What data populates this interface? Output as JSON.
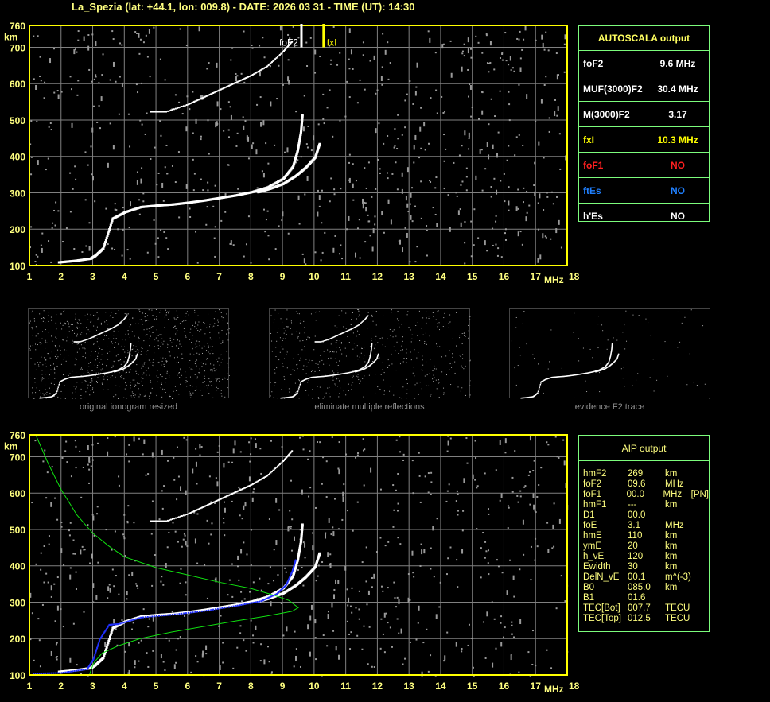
{
  "title": "La_Spezia (lat: +44.1, lon: 009.8) - DATE: 2026 03 31 - TIME (UT): 14:30",
  "chart_data": {
    "type": "scatter",
    "xlabel": "MHz",
    "ylabel": "km",
    "xlim": [
      1,
      18
    ],
    "ylim": [
      100,
      760
    ],
    "xticks": [
      "1",
      "2",
      "3",
      "4",
      "5",
      "6",
      "7",
      "8",
      "9",
      "10",
      "11",
      "12",
      "13",
      "14",
      "15",
      "16",
      "17",
      "18"
    ],
    "yticks": [
      "760",
      "700",
      "600",
      "500",
      "400",
      "300",
      "200",
      "100"
    ],
    "grid": true,
    "markers": [
      {
        "label": "foF2",
        "freq": 9.6,
        "color": "#ffffff"
      },
      {
        "label": "fxI",
        "freq": 10.3,
        "color": "#ffff00"
      }
    ],
    "o_trace": [
      [
        1.9,
        112
      ],
      [
        2.4,
        116
      ],
      [
        2.9,
        122
      ],
      [
        3.05,
        130
      ],
      [
        3.3,
        150
      ],
      [
        3.6,
        232
      ],
      [
        4,
        250
      ],
      [
        4.5,
        264
      ],
      [
        5,
        268
      ],
      [
        5.5,
        271
      ],
      [
        6,
        276
      ],
      [
        6.5,
        282
      ],
      [
        7,
        289
      ],
      [
        7.5,
        296
      ],
      [
        8,
        305
      ],
      [
        8.5,
        318
      ],
      [
        9,
        342
      ],
      [
        9.3,
        375
      ],
      [
        9.45,
        420
      ],
      [
        9.55,
        470
      ],
      [
        9.6,
        520
      ]
    ],
    "x_trace": [
      [
        8.2,
        305
      ],
      [
        8.6,
        315
      ],
      [
        9,
        328
      ],
      [
        9.4,
        350
      ],
      [
        9.7,
        372
      ],
      [
        10,
        400
      ],
      [
        10.15,
        440
      ]
    ],
    "multiple_reflection": [
      [
        4.8,
        525
      ],
      [
        5.3,
        525
      ],
      [
        6,
        545
      ],
      [
        6.5,
        565
      ],
      [
        7,
        585
      ],
      [
        7.5,
        605
      ],
      [
        8,
        625
      ],
      [
        8.5,
        650
      ],
      [
        9,
        690
      ],
      [
        9.3,
        720
      ]
    ],
    "profile": [
      [
        1.2,
        760
      ],
      [
        1.6,
        680
      ],
      [
        2,
        610
      ],
      [
        2.5,
        540
      ],
      [
        3,
        490
      ],
      [
        3.5,
        455
      ],
      [
        4,
        425
      ],
      [
        5,
        395
      ],
      [
        6,
        375
      ],
      [
        7,
        355
      ],
      [
        8,
        338
      ],
      [
        8.7,
        320
      ],
      [
        9.2,
        305
      ],
      [
        9.5,
        285
      ],
      [
        9.3,
        275
      ],
      [
        8.5,
        262
      ],
      [
        7.5,
        248
      ],
      [
        6.5,
        233
      ],
      [
        5.5,
        218
      ],
      [
        4.5,
        200
      ],
      [
        3.8,
        180
      ],
      [
        3.3,
        160
      ],
      [
        3.05,
        135
      ],
      [
        2.95,
        115
      ],
      [
        2.9,
        100
      ]
    ],
    "aip_trace": [
      [
        1.1,
        106
      ],
      [
        2,
        108
      ],
      [
        2.8,
        118
      ],
      [
        3,
        145
      ],
      [
        3.2,
        200
      ],
      [
        3.5,
        240
      ],
      [
        3.8,
        242
      ],
      [
        4.5,
        260
      ],
      [
        5.5,
        268
      ],
      [
        6.5,
        278
      ],
      [
        7.5,
        292
      ],
      [
        8.3,
        305
      ],
      [
        8.8,
        325
      ],
      [
        9.1,
        350
      ],
      [
        9.3,
        390
      ],
      [
        9.4,
        420
      ]
    ]
  },
  "autoscala": {
    "title": "AUTOSCALA output",
    "rows": [
      {
        "label": "foF2",
        "value": "9.6 MHz",
        "color": "#ffffff"
      },
      {
        "label": "MUF(3000)F2",
        "value": "30.4 MHz",
        "color": "#ffffff"
      },
      {
        "label": "M(3000)F2",
        "value": "3.17",
        "color": "#ffffff"
      },
      {
        "label": "fxI",
        "value": "10.3 MHz",
        "color": "#ffff00"
      },
      {
        "label": "foF1",
        "value": "NO",
        "color": "#ff2020"
      },
      {
        "label": "ftEs",
        "value": "NO",
        "color": "#2080ff"
      },
      {
        "label": "h'Es",
        "value": "NO",
        "color": "#ffffff"
      }
    ]
  },
  "aip": {
    "title": "AIP output",
    "rows": [
      [
        "hmF2",
        "269",
        "km",
        ""
      ],
      [
        "foF2",
        "09.6",
        "MHz",
        ""
      ],
      [
        "foF1",
        "00.0",
        "MHz",
        "[PN]"
      ],
      [
        "hmF1",
        "---",
        "km",
        ""
      ],
      [
        "D1",
        "00.0",
        "",
        ""
      ],
      [
        "foE",
        "3.1",
        "MHz",
        ""
      ],
      [
        "hmE",
        "110",
        "km",
        ""
      ],
      [
        "ymE",
        "20",
        "km",
        ""
      ],
      [
        "h_vE",
        "120",
        "km",
        ""
      ],
      [
        "Ewidth",
        "30",
        "km",
        ""
      ],
      [
        "DelN_vE",
        "00.1",
        "m^(-3)",
        ""
      ],
      [
        "B0",
        "085.0",
        "km",
        ""
      ],
      [
        "B1",
        "01.6",
        "",
        ""
      ],
      [
        "TEC[Bot]",
        "007.7",
        "TECU",
        ""
      ],
      [
        "TEC[Top]",
        "012.5",
        "TECU",
        ""
      ]
    ]
  },
  "thumbnails": [
    "original ionogram resized",
    "eliminate multiple reflections",
    "evidence F2 trace"
  ]
}
